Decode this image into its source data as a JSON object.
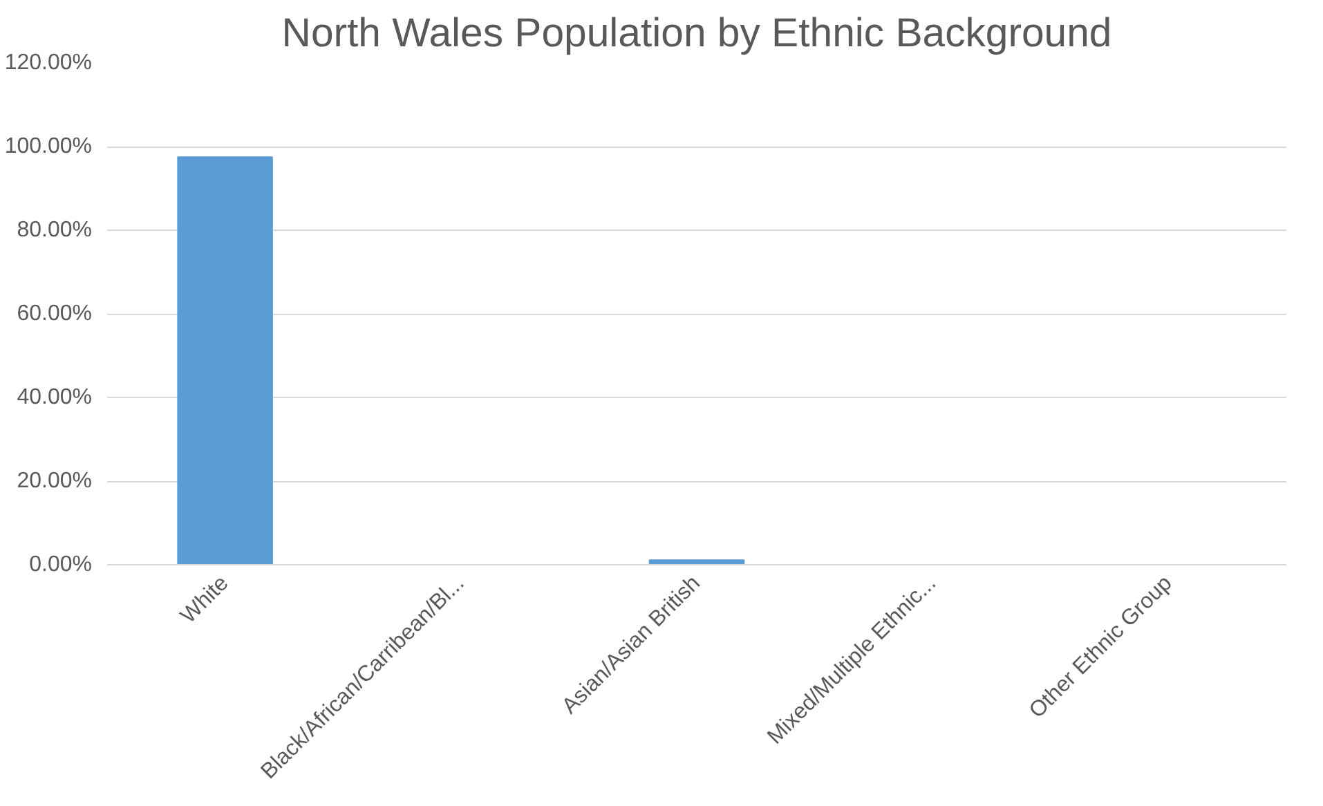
{
  "chart_data": {
    "type": "bar",
    "title": "North Wales Population by Ethnic Background",
    "categories": [
      "White",
      "Black/African/Carribean/Bl...",
      "Asian/Asian British",
      "Mixed/Multiple Ethnic...",
      "Other Ethnic Group"
    ],
    "values": [
      97.5,
      null,
      1.1,
      null,
      null
    ],
    "color": "#5b9bd5",
    "ylim": [
      0,
      120
    ],
    "yticks": [
      {
        "value": 0,
        "label": "0.00%"
      },
      {
        "value": 20,
        "label": "20.00%"
      },
      {
        "value": 40,
        "label": "40.00%"
      },
      {
        "value": 60,
        "label": "60.00%"
      },
      {
        "value": 80,
        "label": "80.00%"
      },
      {
        "value": 100,
        "label": "100.00%"
      },
      {
        "value": 120,
        "label": "120.00%"
      }
    ],
    "grid": "y"
  }
}
